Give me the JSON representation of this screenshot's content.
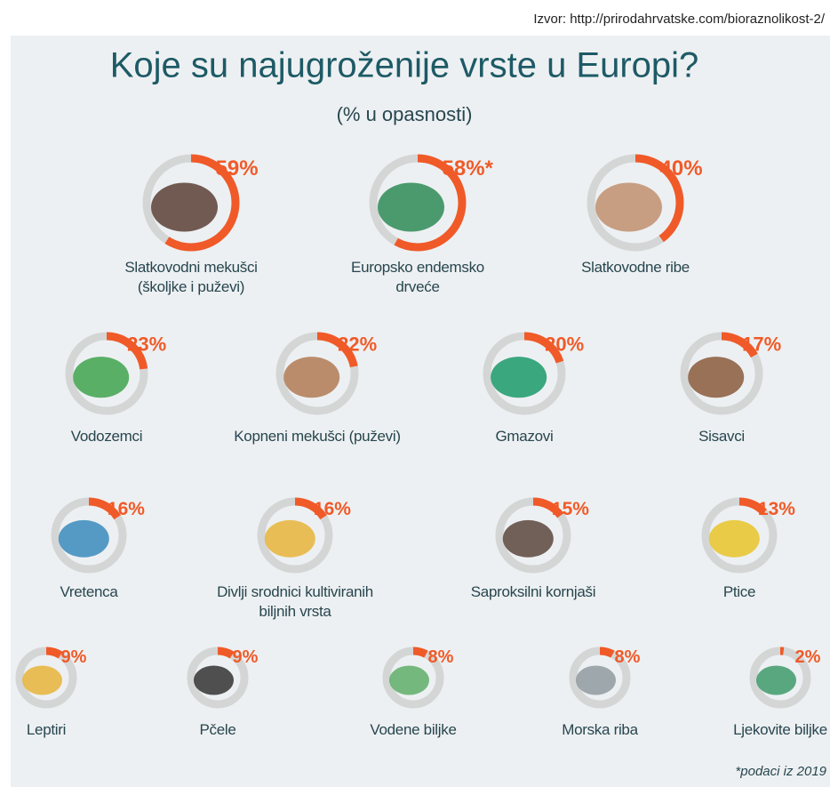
{
  "chart_data": {
    "type": "ring",
    "title": "Koje su najugroženije vrste u Europi?",
    "subtitle": "(% u opasnosti)",
    "source": "Izvor: http://prirodahrvatske.com/bioraznolikost-2/",
    "footnote": "*podaci iz 2019",
    "categories": [
      "Slatkovodni mekušci (školjke i puževi)",
      "Europsko endemsko drveće",
      "Slatkovodne ribe",
      "Vodozemci",
      "Kopneni mekušci (puževi)",
      "Gmazovi",
      "Sisavci",
      "Vretenca",
      "Divlji srodnici kultiviranih biljnih vrsta",
      "Saproksilni kornjaši",
      "Ptice",
      "Leptiri",
      "Pčele",
      "Vodene biljke",
      "Morska riba",
      "Ljekovite biljke"
    ],
    "values": [
      59,
      58,
      40,
      23,
      22,
      20,
      17,
      16,
      16,
      15,
      13,
      9,
      9,
      8,
      8,
      2
    ],
    "value_labels": [
      "59%",
      "58%*",
      "40%",
      "23%",
      "22%",
      "20%",
      "17%",
      "16%",
      "16%",
      "15%",
      "13%",
      "9%",
      "9%",
      "8%",
      "8%",
      "2%"
    ],
    "color": "#f05a28",
    "track_color": "#d4d6d6"
  }
}
